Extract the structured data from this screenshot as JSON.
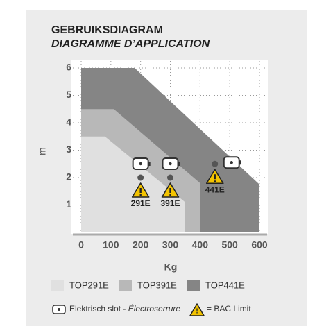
{
  "chart_data": {
    "type": "area",
    "title": "GEBRUIKSDIAGRAM",
    "subtitle": "DIAGRAMME D’APPLICATION",
    "x_label": "Kg",
    "y_label": "m",
    "xlim": [
      0,
      600
    ],
    "ylim": [
      0,
      6
    ],
    "xticks": [
      0,
      100,
      200,
      300,
      400,
      500,
      600
    ],
    "yticks": [
      1,
      2,
      3,
      4,
      5,
      6
    ],
    "grid": true,
    "series": [
      {
        "name": "TOP291E",
        "color": "#e0e0e0",
        "x": [
          0,
          80,
          350,
          350
        ],
        "values": [
          3.5,
          3.5,
          1.1,
          0
        ]
      },
      {
        "name": "TOP391E",
        "color": "#b8b8b8",
        "x": [
          0,
          110,
          400,
          400
        ],
        "values": [
          4.5,
          4.5,
          1.8,
          0
        ]
      },
      {
        "name": "TOP441E",
        "color": "#858585",
        "x": [
          0,
          180,
          600,
          600
        ],
        "values": [
          6,
          6,
          1.75,
          0
        ]
      }
    ],
    "annotations": [
      {
        "label": "291E",
        "x": 200,
        "y": 2
      },
      {
        "label": "391E",
        "x": 300,
        "y": 2
      },
      {
        "label": "441E",
        "x": 450,
        "y": 2.5
      }
    ],
    "lock_note": "Elektrisch slot - ",
    "lock_note_fr": "Électroserrure",
    "bac_note": "= BAC Limit"
  }
}
